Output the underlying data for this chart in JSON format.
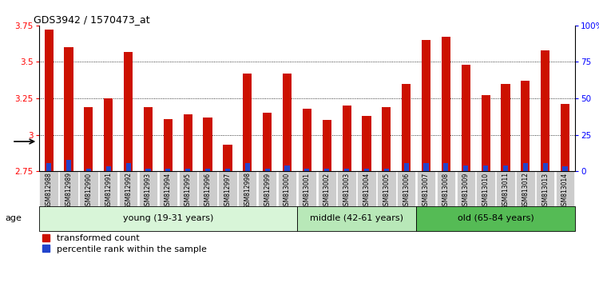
{
  "title": "GDS3942 / 1570473_at",
  "samples": [
    "GSM812988",
    "GSM812989",
    "GSM812990",
    "GSM812991",
    "GSM812992",
    "GSM812993",
    "GSM812994",
    "GSM812995",
    "GSM812996",
    "GSM812997",
    "GSM812998",
    "GSM812999",
    "GSM813000",
    "GSM813001",
    "GSM813002",
    "GSM813003",
    "GSM813004",
    "GSM813005",
    "GSM813006",
    "GSM813007",
    "GSM813008",
    "GSM813009",
    "GSM813010",
    "GSM813011",
    "GSM813012",
    "GSM813013",
    "GSM813014"
  ],
  "red_values": [
    3.72,
    3.6,
    3.19,
    3.25,
    3.57,
    3.19,
    3.11,
    3.14,
    3.12,
    2.93,
    3.42,
    3.15,
    3.42,
    3.18,
    3.1,
    3.2,
    3.13,
    3.19,
    3.35,
    3.65,
    3.67,
    3.48,
    3.27,
    3.35,
    3.37,
    3.58,
    3.21
  ],
  "blue_heights": [
    0.055,
    0.075,
    0.02,
    0.035,
    0.055,
    0.02,
    0.02,
    0.02,
    0.02,
    0.02,
    0.055,
    0.02,
    0.04,
    0.02,
    0.02,
    0.02,
    0.02,
    0.02,
    0.055,
    0.055,
    0.055,
    0.04,
    0.04,
    0.04,
    0.055,
    0.055,
    0.035
  ],
  "ymin": 2.75,
  "ymax": 3.75,
  "yright_min": 0,
  "yright_max": 100,
  "yticks_left": [
    2.75,
    3.0,
    3.25,
    3.5,
    3.75
  ],
  "ytick_labels_left": [
    "2.75",
    "3",
    "3.25",
    "3.5",
    "3.75"
  ],
  "yticks_right": [
    0,
    25,
    50,
    75,
    100
  ],
  "ytick_labels_right": [
    "0",
    "25",
    "50",
    "75",
    "100%"
  ],
  "bar_color_red": "#cc1100",
  "bar_color_blue": "#2244cc",
  "groups": [
    {
      "label": "young (19-31 years)",
      "start": 0,
      "end": 13,
      "color": "#d8f5d8"
    },
    {
      "label": "middle (42-61 years)",
      "start": 13,
      "end": 19,
      "color": "#b8e8b8"
    },
    {
      "label": "old (65-84 years)",
      "start": 19,
      "end": 27,
      "color": "#55bb55"
    }
  ],
  "age_label": "age",
  "legend_red": "transformed count",
  "legend_blue": "percentile rank within the sample",
  "background_color": "#ffffff",
  "tick_area_bg": "#cccccc",
  "bar_width": 0.45,
  "title_fontsize": 9
}
